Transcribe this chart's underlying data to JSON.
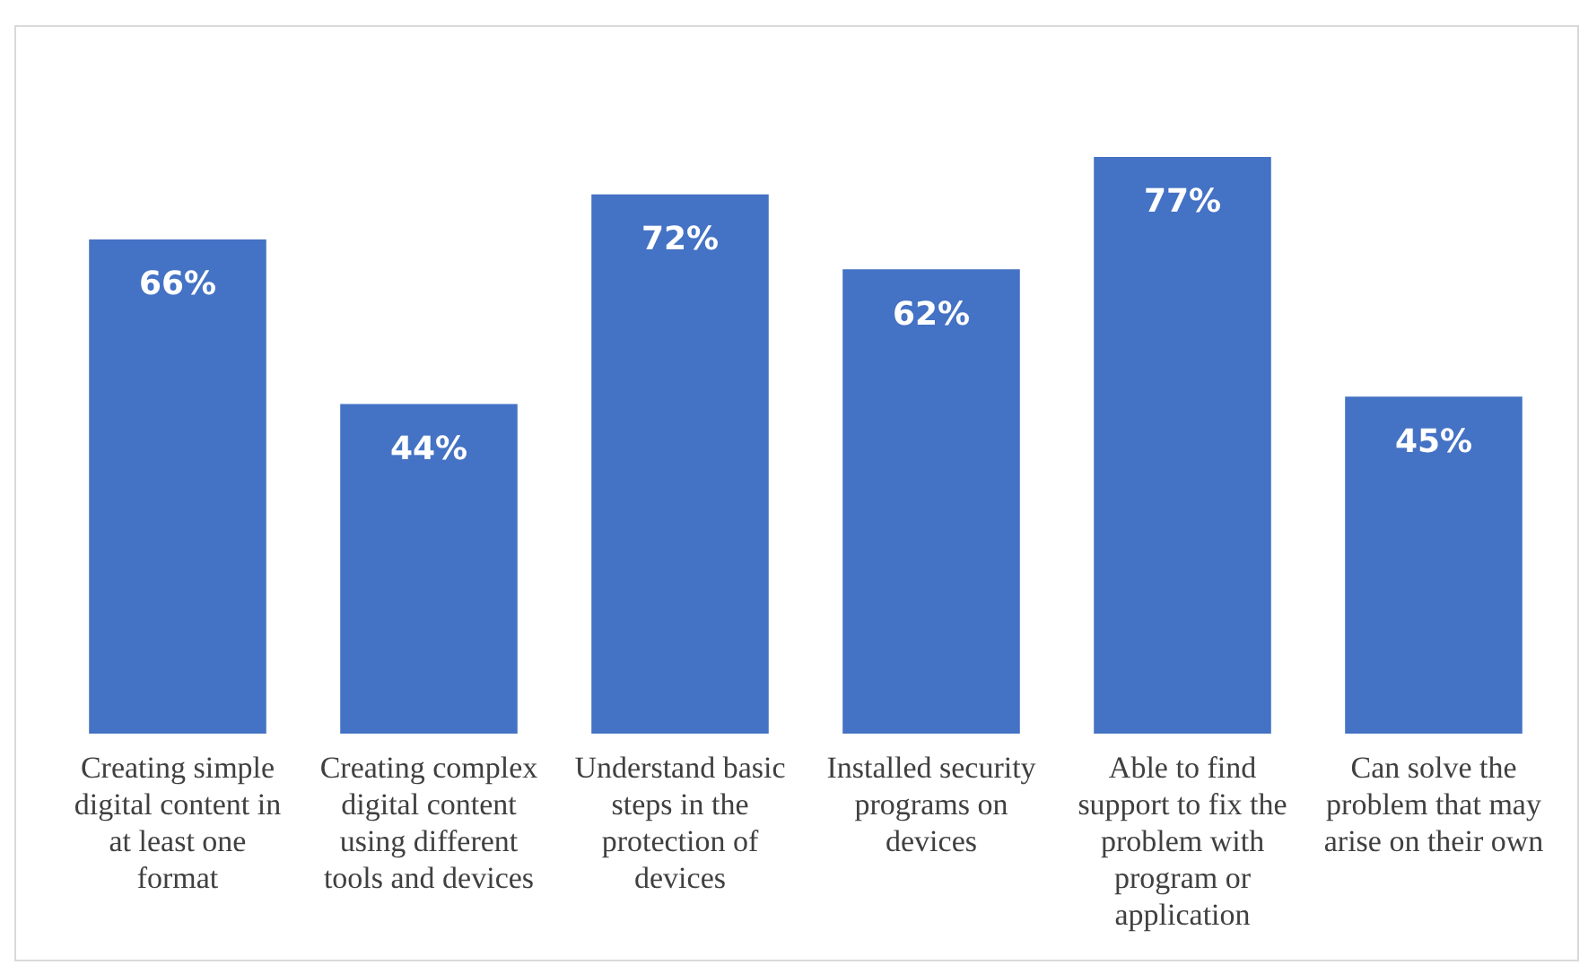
{
  "chart_data": {
    "type": "bar",
    "categories": [
      "Creating simple digital content in at least one format",
      "Creating complex digital content using different tools and devices",
      "Understand basic steps in the protection of devices",
      "Installed security programs on devices",
      "Able to find support to fix the problem with program or application",
      "Can solve the problem that may arise on their own"
    ],
    "values": [
      66,
      44,
      72,
      62,
      77,
      45
    ],
    "color": "#4472c4",
    "data_labels": true,
    "value_labels": [
      "66%",
      "44%",
      "72%",
      "62%",
      "77%",
      "45%"
    ],
    "grid": false,
    "legend": false
  }
}
